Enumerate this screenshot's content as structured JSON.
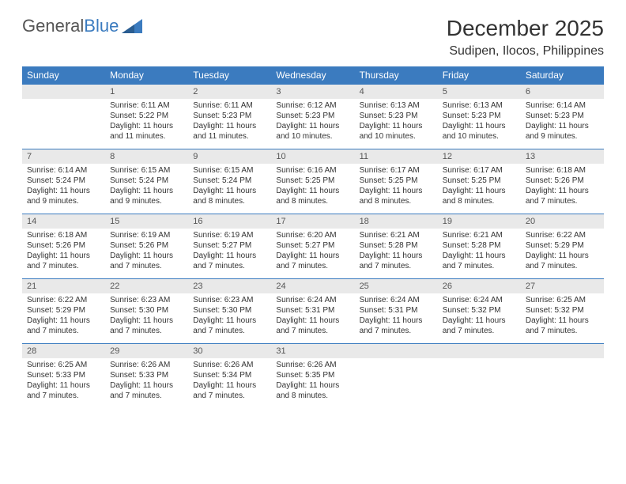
{
  "logo": {
    "text1": "General",
    "text2": "Blue"
  },
  "title": "December 2025",
  "location": "Sudipen, Ilocos, Philippines",
  "colors": {
    "header_bg": "#3b7bbf",
    "header_text": "#ffffff",
    "daynum_bg": "#e9e9e9",
    "daynum_border": "#3b7bbf",
    "page_bg": "#ffffff",
    "text": "#333333"
  },
  "weekdays": [
    "Sunday",
    "Monday",
    "Tuesday",
    "Wednesday",
    "Thursday",
    "Friday",
    "Saturday"
  ],
  "weeks": [
    [
      {
        "n": "",
        "sr": "",
        "ss": "",
        "dl": ""
      },
      {
        "n": "1",
        "sr": "Sunrise: 6:11 AM",
        "ss": "Sunset: 5:22 PM",
        "dl": "Daylight: 11 hours and 11 minutes."
      },
      {
        "n": "2",
        "sr": "Sunrise: 6:11 AM",
        "ss": "Sunset: 5:23 PM",
        "dl": "Daylight: 11 hours and 11 minutes."
      },
      {
        "n": "3",
        "sr": "Sunrise: 6:12 AM",
        "ss": "Sunset: 5:23 PM",
        "dl": "Daylight: 11 hours and 10 minutes."
      },
      {
        "n": "4",
        "sr": "Sunrise: 6:13 AM",
        "ss": "Sunset: 5:23 PM",
        "dl": "Daylight: 11 hours and 10 minutes."
      },
      {
        "n": "5",
        "sr": "Sunrise: 6:13 AM",
        "ss": "Sunset: 5:23 PM",
        "dl": "Daylight: 11 hours and 10 minutes."
      },
      {
        "n": "6",
        "sr": "Sunrise: 6:14 AM",
        "ss": "Sunset: 5:23 PM",
        "dl": "Daylight: 11 hours and 9 minutes."
      }
    ],
    [
      {
        "n": "7",
        "sr": "Sunrise: 6:14 AM",
        "ss": "Sunset: 5:24 PM",
        "dl": "Daylight: 11 hours and 9 minutes."
      },
      {
        "n": "8",
        "sr": "Sunrise: 6:15 AM",
        "ss": "Sunset: 5:24 PM",
        "dl": "Daylight: 11 hours and 9 minutes."
      },
      {
        "n": "9",
        "sr": "Sunrise: 6:15 AM",
        "ss": "Sunset: 5:24 PM",
        "dl": "Daylight: 11 hours and 8 minutes."
      },
      {
        "n": "10",
        "sr": "Sunrise: 6:16 AM",
        "ss": "Sunset: 5:25 PM",
        "dl": "Daylight: 11 hours and 8 minutes."
      },
      {
        "n": "11",
        "sr": "Sunrise: 6:17 AM",
        "ss": "Sunset: 5:25 PM",
        "dl": "Daylight: 11 hours and 8 minutes."
      },
      {
        "n": "12",
        "sr": "Sunrise: 6:17 AM",
        "ss": "Sunset: 5:25 PM",
        "dl": "Daylight: 11 hours and 8 minutes."
      },
      {
        "n": "13",
        "sr": "Sunrise: 6:18 AM",
        "ss": "Sunset: 5:26 PM",
        "dl": "Daylight: 11 hours and 7 minutes."
      }
    ],
    [
      {
        "n": "14",
        "sr": "Sunrise: 6:18 AM",
        "ss": "Sunset: 5:26 PM",
        "dl": "Daylight: 11 hours and 7 minutes."
      },
      {
        "n": "15",
        "sr": "Sunrise: 6:19 AM",
        "ss": "Sunset: 5:26 PM",
        "dl": "Daylight: 11 hours and 7 minutes."
      },
      {
        "n": "16",
        "sr": "Sunrise: 6:19 AM",
        "ss": "Sunset: 5:27 PM",
        "dl": "Daylight: 11 hours and 7 minutes."
      },
      {
        "n": "17",
        "sr": "Sunrise: 6:20 AM",
        "ss": "Sunset: 5:27 PM",
        "dl": "Daylight: 11 hours and 7 minutes."
      },
      {
        "n": "18",
        "sr": "Sunrise: 6:21 AM",
        "ss": "Sunset: 5:28 PM",
        "dl": "Daylight: 11 hours and 7 minutes."
      },
      {
        "n": "19",
        "sr": "Sunrise: 6:21 AM",
        "ss": "Sunset: 5:28 PM",
        "dl": "Daylight: 11 hours and 7 minutes."
      },
      {
        "n": "20",
        "sr": "Sunrise: 6:22 AM",
        "ss": "Sunset: 5:29 PM",
        "dl": "Daylight: 11 hours and 7 minutes."
      }
    ],
    [
      {
        "n": "21",
        "sr": "Sunrise: 6:22 AM",
        "ss": "Sunset: 5:29 PM",
        "dl": "Daylight: 11 hours and 7 minutes."
      },
      {
        "n": "22",
        "sr": "Sunrise: 6:23 AM",
        "ss": "Sunset: 5:30 PM",
        "dl": "Daylight: 11 hours and 7 minutes."
      },
      {
        "n": "23",
        "sr": "Sunrise: 6:23 AM",
        "ss": "Sunset: 5:30 PM",
        "dl": "Daylight: 11 hours and 7 minutes."
      },
      {
        "n": "24",
        "sr": "Sunrise: 6:24 AM",
        "ss": "Sunset: 5:31 PM",
        "dl": "Daylight: 11 hours and 7 minutes."
      },
      {
        "n": "25",
        "sr": "Sunrise: 6:24 AM",
        "ss": "Sunset: 5:31 PM",
        "dl": "Daylight: 11 hours and 7 minutes."
      },
      {
        "n": "26",
        "sr": "Sunrise: 6:24 AM",
        "ss": "Sunset: 5:32 PM",
        "dl": "Daylight: 11 hours and 7 minutes."
      },
      {
        "n": "27",
        "sr": "Sunrise: 6:25 AM",
        "ss": "Sunset: 5:32 PM",
        "dl": "Daylight: 11 hours and 7 minutes."
      }
    ],
    [
      {
        "n": "28",
        "sr": "Sunrise: 6:25 AM",
        "ss": "Sunset: 5:33 PM",
        "dl": "Daylight: 11 hours and 7 minutes."
      },
      {
        "n": "29",
        "sr": "Sunrise: 6:26 AM",
        "ss": "Sunset: 5:33 PM",
        "dl": "Daylight: 11 hours and 7 minutes."
      },
      {
        "n": "30",
        "sr": "Sunrise: 6:26 AM",
        "ss": "Sunset: 5:34 PM",
        "dl": "Daylight: 11 hours and 7 minutes."
      },
      {
        "n": "31",
        "sr": "Sunrise: 6:26 AM",
        "ss": "Sunset: 5:35 PM",
        "dl": "Daylight: 11 hours and 8 minutes."
      },
      {
        "n": "",
        "sr": "",
        "ss": "",
        "dl": ""
      },
      {
        "n": "",
        "sr": "",
        "ss": "",
        "dl": ""
      },
      {
        "n": "",
        "sr": "",
        "ss": "",
        "dl": ""
      }
    ]
  ]
}
